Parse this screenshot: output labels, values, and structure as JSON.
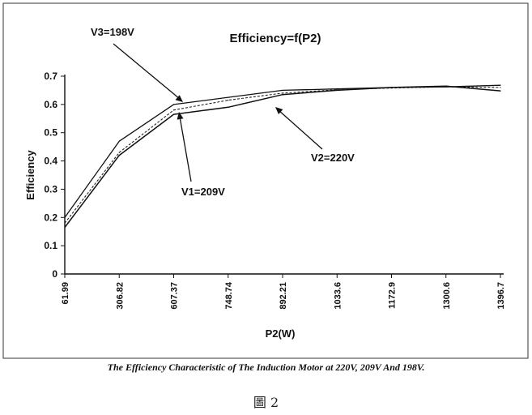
{
  "chart_data": {
    "type": "line",
    "title": "Efficiency=f(P2)",
    "xlabel": "P2(W)",
    "ylabel": "Efficiency",
    "categories": [
      "61.99",
      "306.82",
      "607.37",
      "748.74",
      "892.21",
      "1033.6",
      "1172.9",
      "1300.6",
      "1396.7"
    ],
    "ylim": [
      0,
      0.7
    ],
    "yticks": [
      "0",
      "0.1",
      "0.2",
      "0.3",
      "0.4",
      "0.5",
      "0.6",
      "0.7"
    ],
    "grid": false,
    "series": [
      {
        "name": "V3=198V",
        "values": [
          0.2,
          0.47,
          0.6,
          0.625,
          0.65,
          0.655,
          0.66,
          0.662,
          0.668
        ]
      },
      {
        "name": "V1=209V",
        "values": [
          0.18,
          0.43,
          0.58,
          0.615,
          0.64,
          0.652,
          0.658,
          0.662,
          0.66
        ]
      },
      {
        "name": "V2=220V",
        "values": [
          0.165,
          0.42,
          0.565,
          0.59,
          0.635,
          0.65,
          0.66,
          0.665,
          0.648
        ]
      }
    ],
    "annotations": [
      "V3=198V",
      "V1=209V",
      "V2=220V"
    ]
  },
  "caption": "The Efficiency Characteristic of  The Induction Motor at 220V, 209V And 198V.",
  "figure_label": "圖 2"
}
